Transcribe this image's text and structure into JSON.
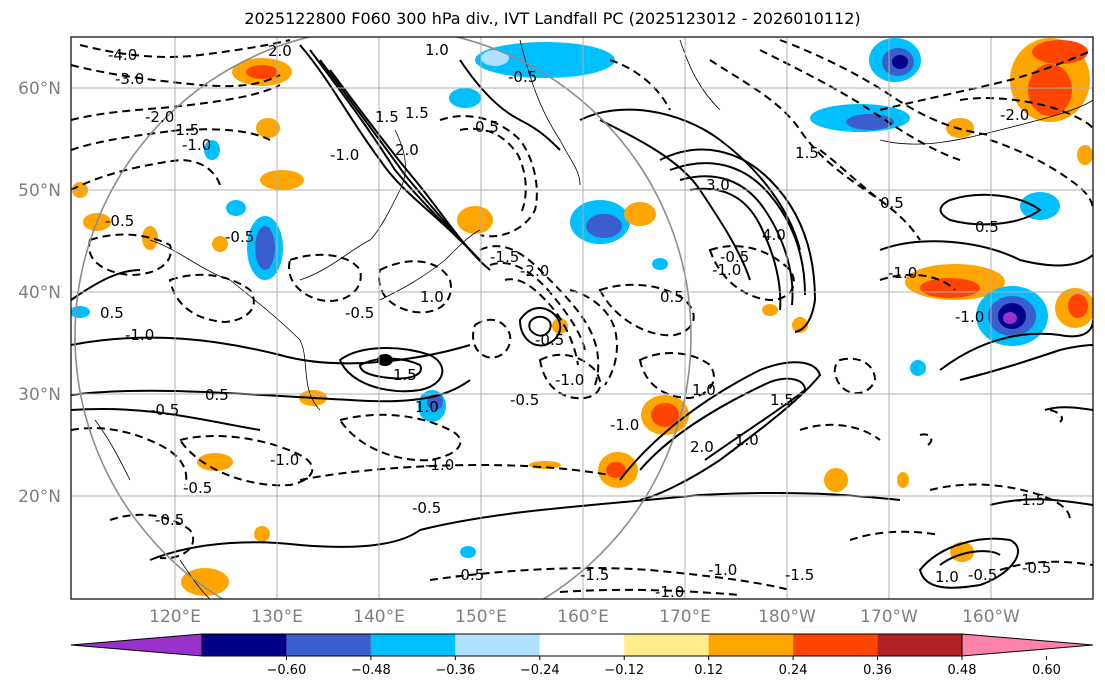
{
  "title": "2025122800 F060 300 hPa div., IVT Landfall PC (2025123012 - 2026010112)",
  "lat_labels": [
    "60°N",
    "50°N",
    "40°N",
    "30°N",
    "20°N"
  ],
  "lon_labels": [
    "120°E",
    "130°E",
    "140°E",
    "150°E",
    "160°E",
    "170°E",
    "180°W",
    "170°W",
    "160°W"
  ],
  "colorbar": {
    "colors": [
      "#9932cc",
      "#00008b",
      "#3a5fcd",
      "#00bfff",
      "#b0e2ff",
      "#ffffff",
      "#ffec8b",
      "#ffa500",
      "#ff4500",
      "#b22222",
      "#ff82ab"
    ],
    "ticks": [
      "−0.60",
      "−0.48",
      "−0.36",
      "−0.24",
      "−0.12",
      "0.12",
      "0.24",
      "0.36",
      "0.48",
      "0.60"
    ]
  },
  "contour_labels": [
    "-4.0",
    "-3.0",
    "-2.0",
    "-1.5",
    "-1.0",
    "-0.5",
    "2.0",
    "1.0",
    "1.5",
    "0.5",
    "-0.5",
    "1.5",
    "-1.0",
    "2.0",
    "-0.5",
    "0.5",
    "3.0",
    "4.0",
    "-2.0",
    "-1.5",
    "1.0",
    "-0.5",
    "-1.0",
    "-0.5",
    "0.5",
    "-0.5",
    "-1.0",
    "1.5",
    "-1.0",
    "0.5",
    "1.0",
    "-0.5",
    "-1.0",
    "-0.5",
    "-0.5",
    "-1.0",
    "-0.5",
    "-0.5",
    "0.5",
    "1.5",
    "-1.0",
    "-1.5",
    "-1.0",
    "-1.0",
    "1.0",
    "-1.5",
    "1.0",
    "-0.5",
    "1.5",
    "2.0",
    "1.0",
    "-2.0",
    "0.5",
    "-0.5",
    "-0.5",
    "-1.0",
    "-1.5",
    "-1.0"
  ]
}
